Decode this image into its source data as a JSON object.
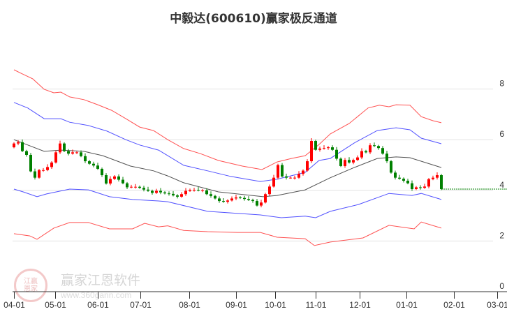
{
  "chart_data": {
    "type": "candlestick",
    "title": "中毅达(600610)赢家极反通道",
    "ylim": [
      0,
      8.6
    ],
    "y_ticks": [
      "0",
      "2",
      "4",
      "6",
      "8"
    ],
    "y_tick_values": [
      0,
      2,
      4,
      6,
      8
    ],
    "x_ticks": [
      {
        "label": "04-01",
        "idx": 0
      },
      {
        "label": "05-01",
        "idx": 9.8
      },
      {
        "label": "06-01",
        "idx": 20
      },
      {
        "label": "07-01",
        "idx": 30.2
      },
      {
        "label": "08-01",
        "idx": 41.8
      },
      {
        "label": "09-01",
        "idx": 53
      },
      {
        "label": "10-01",
        "idx": 62.3
      },
      {
        "label": "11-01",
        "idx": 72
      },
      {
        "label": "12-01",
        "idx": 82.5
      },
      {
        "label": "01-01",
        "idx": 93.7
      },
      {
        "label": "02-01",
        "idx": 105
      },
      {
        "label": "03-01",
        "idx": 115.3
      }
    ],
    "closes": [
      5.85,
      5.9,
      5.55,
      5.4,
      4.75,
      4.5,
      4.8,
      4.8,
      4.92,
      5.1,
      5.5,
      5.85,
      5.55,
      5.45,
      5.5,
      5.5,
      5.35,
      5.15,
      5.05,
      4.98,
      4.85,
      4.6,
      4.27,
      4.45,
      4.55,
      4.42,
      4.28,
      4.12,
      4.14,
      4.14,
      4.1,
      4.03,
      3.98,
      3.9,
      3.98,
      3.92,
      3.88,
      3.86,
      3.8,
      3.75,
      3.85,
      3.98,
      4.02,
      4.02,
      4.0,
      4.0,
      3.85,
      3.78,
      3.68,
      3.58,
      3.55,
      3.6,
      3.68,
      3.72,
      3.7,
      3.66,
      3.62,
      3.58,
      3.4,
      3.52,
      3.85,
      4.15,
      4.5,
      5.0,
      4.55,
      4.5,
      4.5,
      4.5,
      4.65,
      4.78,
      5.15,
      5.95,
      5.6,
      5.65,
      5.67,
      5.7,
      5.6,
      5.25,
      4.96,
      5.2,
      5.1,
      5.2,
      5.3,
      5.55,
      5.5,
      5.78,
      5.75,
      5.67,
      5.45,
      5.15,
      4.7,
      4.5,
      4.46,
      4.38,
      4.28,
      4.05,
      4.12,
      4.1,
      4.15,
      4.44,
      4.5,
      4.6,
      4.05
    ],
    "first_open": 5.7,
    "last_price": 4.05,
    "bands": [
      {
        "name": "outer-upper",
        "color": "#ff3333",
        "points": [
          [
            0,
            8.76
          ],
          [
            1.7,
            8.62
          ],
          [
            4.5,
            8.4
          ],
          [
            7.2,
            7.99
          ],
          [
            9.5,
            7.85
          ],
          [
            11.2,
            7.88
          ],
          [
            13.3,
            7.69
          ],
          [
            16.7,
            7.58
          ],
          [
            20,
            7.38
          ],
          [
            23.3,
            7.16
          ],
          [
            26.7,
            6.83
          ],
          [
            30,
            6.5
          ],
          [
            33.3,
            6.36
          ],
          [
            36.7,
            6.0
          ],
          [
            40.5,
            5.65
          ],
          [
            44.5,
            5.45
          ],
          [
            48.8,
            5.18
          ],
          [
            54.5,
            4.96
          ],
          [
            59.2,
            4.82
          ],
          [
            62.8,
            5.12
          ],
          [
            66.2,
            5.26
          ],
          [
            69.5,
            5.37
          ],
          [
            72.8,
            5.81
          ],
          [
            75.5,
            6.23
          ],
          [
            80,
            6.64
          ],
          [
            84.5,
            7.25
          ],
          [
            87.2,
            7.36
          ],
          [
            89.5,
            7.3
          ],
          [
            91.2,
            7.38
          ],
          [
            94.5,
            7.36
          ],
          [
            97.2,
            6.91
          ],
          [
            100,
            6.75
          ],
          [
            102,
            6.67
          ]
        ]
      },
      {
        "name": "inner-upper",
        "color": "#3333ff",
        "points": [
          [
            0,
            7.47
          ],
          [
            3.3,
            7.25
          ],
          [
            7.2,
            6.83
          ],
          [
            11.2,
            6.83
          ],
          [
            13.3,
            6.69
          ],
          [
            17.8,
            6.56
          ],
          [
            22.2,
            6.34
          ],
          [
            26.7,
            6.0
          ],
          [
            30,
            5.79
          ],
          [
            34.5,
            5.59
          ],
          [
            36.7,
            5.37
          ],
          [
            40.5,
            4.99
          ],
          [
            46.2,
            4.77
          ],
          [
            51.7,
            4.55
          ],
          [
            58.8,
            4.35
          ],
          [
            62.8,
            4.44
          ],
          [
            69.5,
            4.71
          ],
          [
            72.8,
            5.18
          ],
          [
            75.5,
            5.26
          ],
          [
            81.2,
            5.87
          ],
          [
            86.7,
            6.36
          ],
          [
            91.2,
            6.47
          ],
          [
            94.5,
            6.39
          ],
          [
            97.2,
            6.06
          ],
          [
            102,
            5.84
          ]
        ]
      },
      {
        "name": "middle",
        "color": "#333333",
        "points": [
          [
            0,
            6.0
          ],
          [
            3.3,
            5.79
          ],
          [
            7.2,
            5.54
          ],
          [
            11.2,
            5.59
          ],
          [
            16.7,
            5.54
          ],
          [
            21.2,
            5.37
          ],
          [
            27.8,
            4.96
          ],
          [
            33.3,
            4.77
          ],
          [
            36.7,
            4.57
          ],
          [
            40.5,
            4.3
          ],
          [
            48.8,
            3.94
          ],
          [
            59.5,
            3.75
          ],
          [
            62.8,
            3.8
          ],
          [
            69.5,
            4.02
          ],
          [
            75.5,
            4.5
          ],
          [
            81.2,
            4.9
          ],
          [
            86.7,
            5.26
          ],
          [
            91.2,
            5.32
          ],
          [
            94.5,
            5.29
          ],
          [
            102,
            4.9
          ]
        ]
      },
      {
        "name": "inner-lower",
        "color": "#3333ff",
        "points": [
          [
            0,
            4.05
          ],
          [
            2.2,
            3.94
          ],
          [
            5.5,
            3.75
          ],
          [
            7.8,
            3.86
          ],
          [
            13.3,
            4.05
          ],
          [
            17.8,
            4.02
          ],
          [
            22.8,
            3.75
          ],
          [
            28.3,
            3.64
          ],
          [
            34.5,
            3.58
          ],
          [
            36.7,
            3.55
          ],
          [
            46.2,
            3.17
          ],
          [
            58.8,
            3.03
          ],
          [
            63.8,
            2.92
          ],
          [
            69.5,
            2.98
          ],
          [
            72,
            2.92
          ],
          [
            75.5,
            3.17
          ],
          [
            82.2,
            3.44
          ],
          [
            89.5,
            3.88
          ],
          [
            95,
            3.8
          ],
          [
            97.2,
            3.88
          ],
          [
            102,
            3.64
          ]
        ]
      },
      {
        "name": "outer-lower",
        "color": "#ff3333",
        "points": [
          [
            0,
            2.29
          ],
          [
            3.8,
            2.2
          ],
          [
            5.5,
            2.07
          ],
          [
            9.5,
            2.51
          ],
          [
            13.3,
            2.73
          ],
          [
            17.8,
            2.73
          ],
          [
            22.8,
            2.48
          ],
          [
            28.3,
            2.48
          ],
          [
            31.2,
            2.7
          ],
          [
            34.5,
            2.56
          ],
          [
            36.7,
            2.6
          ],
          [
            40.5,
            2.42
          ],
          [
            46.2,
            2.37
          ],
          [
            53.3,
            2.34
          ],
          [
            58.8,
            2.34
          ],
          [
            62.8,
            2.15
          ],
          [
            69.5,
            2.09
          ],
          [
            71.7,
            1.82
          ],
          [
            75.5,
            1.96
          ],
          [
            83.3,
            2.12
          ],
          [
            89.5,
            2.62
          ],
          [
            95.5,
            2.48
          ],
          [
            97.2,
            2.75
          ],
          [
            102,
            2.51
          ]
        ]
      }
    ],
    "up_color": "#ff0000",
    "down_color": "#008000"
  },
  "watermark": {
    "seal": "江赢恩家",
    "name": "赢家江恩软件",
    "url": "www.360gann.com"
  }
}
